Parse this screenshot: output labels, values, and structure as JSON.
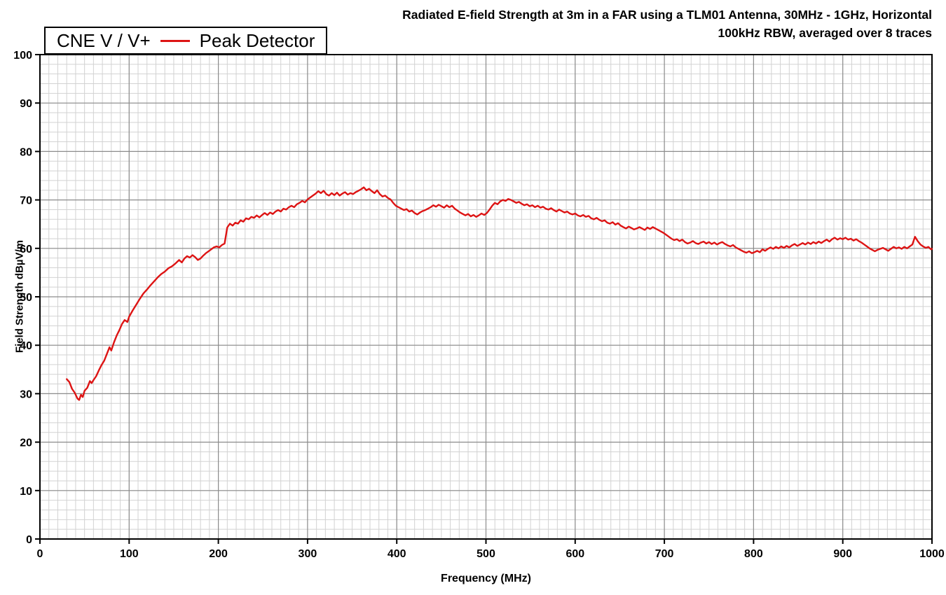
{
  "chart": {
    "title_line1": "Radiated E-field Strength at 3m in a FAR using a TLM01 Antenna, 30MHz - 1GHz, Horizontal",
    "title_line2": "100kHz RBW, averaged over 8 traces",
    "legend_device": "CNE V / V+",
    "legend_series": "Peak Detector",
    "xlabel": "Frequency (MHz)",
    "ylabel": "Field Strength dBµV/m"
  },
  "chart_data": {
    "type": "line",
    "title": "Radiated E-field Strength at 3m in a FAR using a TLM01 Antenna, 30MHz - 1GHz, Horizontal — 100kHz RBW, averaged over 8 traces",
    "xlabel": "Frequency (MHz)",
    "ylabel": "Field Strength dBµV/m",
    "xlim": [
      0,
      1000
    ],
    "ylim": [
      0,
      100
    ],
    "x_ticks": [
      0,
      100,
      200,
      300,
      400,
      500,
      600,
      700,
      800,
      900,
      1000
    ],
    "y_ticks": [
      0,
      10,
      20,
      30,
      40,
      50,
      60,
      70,
      80,
      90,
      100
    ],
    "x_minor_step": 10,
    "y_minor_step": 2,
    "grid": "on",
    "legend_position": "top-left",
    "series_name": "Peak Detector",
    "series_color": "#dd1414",
    "minor_grid_color": "#d2d2d2",
    "major_grid_color": "#8c8c8c",
    "points": [
      [
        30,
        33
      ],
      [
        33,
        32.4
      ],
      [
        36,
        31
      ],
      [
        39,
        30.2
      ],
      [
        42,
        29
      ],
      [
        44,
        28.7
      ],
      [
        46,
        29.8
      ],
      [
        48,
        29.3
      ],
      [
        50,
        30.6
      ],
      [
        53,
        31.2
      ],
      [
        56,
        32.6
      ],
      [
        58,
        32.2
      ],
      [
        60,
        32.8
      ],
      [
        63,
        33.6
      ],
      [
        66,
        34.8
      ],
      [
        69,
        35.9
      ],
      [
        72,
        36.8
      ],
      [
        75,
        38.2
      ],
      [
        78,
        39.6
      ],
      [
        80,
        38.9
      ],
      [
        83,
        40.6
      ],
      [
        86,
        42
      ],
      [
        89,
        43.1
      ],
      [
        92,
        44.4
      ],
      [
        95,
        45.2
      ],
      [
        98,
        44.8
      ],
      [
        100,
        45.9
      ],
      [
        104,
        47.2
      ],
      [
        108,
        48.4
      ],
      [
        112,
        49.6
      ],
      [
        116,
        50.7
      ],
      [
        120,
        51.5
      ],
      [
        124,
        52.4
      ],
      [
        128,
        53.2
      ],
      [
        132,
        54
      ],
      [
        136,
        54.7
      ],
      [
        140,
        55.2
      ],
      [
        144,
        55.9
      ],
      [
        148,
        56.3
      ],
      [
        152,
        56.9
      ],
      [
        156,
        57.6
      ],
      [
        159,
        57.1
      ],
      [
        162,
        57.9
      ],
      [
        165,
        58.4
      ],
      [
        168,
        58.1
      ],
      [
        171,
        58.6
      ],
      [
        174,
        58.2
      ],
      [
        177,
        57.6
      ],
      [
        180,
        57.9
      ],
      [
        183,
        58.5
      ],
      [
        186,
        59
      ],
      [
        189,
        59.4
      ],
      [
        192,
        59.8
      ],
      [
        195,
        60.2
      ],
      [
        198,
        60.4
      ],
      [
        201,
        60.2
      ],
      [
        204,
        60.7
      ],
      [
        207,
        61
      ],
      [
        210,
        64.3
      ],
      [
        213,
        65.1
      ],
      [
        216,
        64.7
      ],
      [
        219,
        65.3
      ],
      [
        222,
        65.1
      ],
      [
        225,
        65.8
      ],
      [
        228,
        65.5
      ],
      [
        231,
        66.2
      ],
      [
        234,
        66
      ],
      [
        237,
        66.5
      ],
      [
        240,
        66.3
      ],
      [
        243,
        66.8
      ],
      [
        246,
        66.4
      ],
      [
        249,
        66.9
      ],
      [
        252,
        67.3
      ],
      [
        255,
        66.9
      ],
      [
        258,
        67.4
      ],
      [
        261,
        67.1
      ],
      [
        264,
        67.6
      ],
      [
        267,
        67.9
      ],
      [
        270,
        67.6
      ],
      [
        273,
        68.2
      ],
      [
        276,
        68
      ],
      [
        279,
        68.5
      ],
      [
        282,
        68.8
      ],
      [
        285,
        68.5
      ],
      [
        288,
        69.1
      ],
      [
        291,
        69.4
      ],
      [
        294,
        69.8
      ],
      [
        297,
        69.5
      ],
      [
        300,
        70.1
      ],
      [
        303,
        70.5
      ],
      [
        306,
        70.9
      ],
      [
        309,
        71.3
      ],
      [
        312,
        71.8
      ],
      [
        315,
        71.4
      ],
      [
        318,
        71.9
      ],
      [
        321,
        71.2
      ],
      [
        324,
        70.9
      ],
      [
        327,
        71.4
      ],
      [
        330,
        71
      ],
      [
        333,
        71.5
      ],
      [
        336,
        70.9
      ],
      [
        339,
        71.3
      ],
      [
        342,
        71.6
      ],
      [
        345,
        71.1
      ],
      [
        348,
        71.4
      ],
      [
        351,
        71.2
      ],
      [
        354,
        71.6
      ],
      [
        357,
        71.9
      ],
      [
        360,
        72.2
      ],
      [
        363,
        72.6
      ],
      [
        366,
        72
      ],
      [
        369,
        72.3
      ],
      [
        372,
        71.8
      ],
      [
        375,
        71.4
      ],
      [
        378,
        72
      ],
      [
        381,
        71.2
      ],
      [
        384,
        70.7
      ],
      [
        387,
        70.9
      ],
      [
        390,
        70.4
      ],
      [
        393,
        70.1
      ],
      [
        396,
        69.4
      ],
      [
        399,
        68.8
      ],
      [
        402,
        68.5
      ],
      [
        405,
        68.2
      ],
      [
        408,
        67.9
      ],
      [
        411,
        68.1
      ],
      [
        414,
        67.6
      ],
      [
        417,
        67.8
      ],
      [
        420,
        67.3
      ],
      [
        423,
        67
      ],
      [
        426,
        67.4
      ],
      [
        429,
        67.7
      ],
      [
        432,
        67.9
      ],
      [
        435,
        68.2
      ],
      [
        438,
        68.5
      ],
      [
        441,
        68.9
      ],
      [
        444,
        68.6
      ],
      [
        447,
        69
      ],
      [
        450,
        68.7
      ],
      [
        453,
        68.4
      ],
      [
        456,
        68.9
      ],
      [
        459,
        68.5
      ],
      [
        462,
        68.8
      ],
      [
        465,
        68.2
      ],
      [
        468,
        67.8
      ],
      [
        471,
        67.4
      ],
      [
        474,
        67.1
      ],
      [
        477,
        66.8
      ],
      [
        480,
        67.1
      ],
      [
        483,
        66.6
      ],
      [
        486,
        66.9
      ],
      [
        489,
        66.5
      ],
      [
        492,
        66.8
      ],
      [
        495,
        67.2
      ],
      [
        498,
        66.9
      ],
      [
        501,
        67.3
      ],
      [
        504,
        68
      ],
      [
        507,
        68.8
      ],
      [
        510,
        69.4
      ],
      [
        513,
        69.1
      ],
      [
        516,
        69.7
      ],
      [
        519,
        70
      ],
      [
        522,
        69.8
      ],
      [
        525,
        70.2
      ],
      [
        528,
        70
      ],
      [
        531,
        69.7
      ],
      [
        534,
        69.4
      ],
      [
        537,
        69.6
      ],
      [
        540,
        69.2
      ],
      [
        543,
        68.9
      ],
      [
        546,
        69.1
      ],
      [
        549,
        68.7
      ],
      [
        552,
        68.9
      ],
      [
        555,
        68.5
      ],
      [
        558,
        68.8
      ],
      [
        561,
        68.4
      ],
      [
        564,
        68.6
      ],
      [
        567,
        68.2
      ],
      [
        570,
        68
      ],
      [
        573,
        68.3
      ],
      [
        576,
        67.9
      ],
      [
        579,
        67.6
      ],
      [
        582,
        68
      ],
      [
        585,
        67.7
      ],
      [
        588,
        67.4
      ],
      [
        591,
        67.6
      ],
      [
        594,
        67.2
      ],
      [
        597,
        67
      ],
      [
        600,
        67.2
      ],
      [
        603,
        66.8
      ],
      [
        606,
        66.6
      ],
      [
        609,
        66.9
      ],
      [
        612,
        66.5
      ],
      [
        615,
        66.7
      ],
      [
        618,
        66.2
      ],
      [
        621,
        66
      ],
      [
        624,
        66.3
      ],
      [
        627,
        65.9
      ],
      [
        630,
        65.6
      ],
      [
        633,
        65.8
      ],
      [
        636,
        65.3
      ],
      [
        639,
        65.1
      ],
      [
        642,
        65.4
      ],
      [
        645,
        64.9
      ],
      [
        648,
        65.2
      ],
      [
        651,
        64.7
      ],
      [
        654,
        64.4
      ],
      [
        657,
        64.1
      ],
      [
        660,
        64.5
      ],
      [
        663,
        64.2
      ],
      [
        666,
        63.9
      ],
      [
        669,
        64.1
      ],
      [
        672,
        64.4
      ],
      [
        675,
        64.1
      ],
      [
        678,
        63.8
      ],
      [
        681,
        64.3
      ],
      [
        684,
        64
      ],
      [
        687,
        64.4
      ],
      [
        690,
        64.1
      ],
      [
        693,
        63.8
      ],
      [
        696,
        63.5
      ],
      [
        699,
        63.2
      ],
      [
        702,
        62.8
      ],
      [
        705,
        62.4
      ],
      [
        708,
        62
      ],
      [
        711,
        61.7
      ],
      [
        714,
        61.9
      ],
      [
        717,
        61.5
      ],
      [
        720,
        61.8
      ],
      [
        723,
        61.3
      ],
      [
        726,
        61
      ],
      [
        729,
        61.2
      ],
      [
        732,
        61.5
      ],
      [
        735,
        61.1
      ],
      [
        738,
        60.9
      ],
      [
        741,
        61.2
      ],
      [
        744,
        61.4
      ],
      [
        747,
        61
      ],
      [
        750,
        61.3
      ],
      [
        753,
        60.9
      ],
      [
        756,
        61.2
      ],
      [
        759,
        60.8
      ],
      [
        762,
        61.1
      ],
      [
        765,
        61.3
      ],
      [
        768,
        60.9
      ],
      [
        771,
        60.6
      ],
      [
        774,
        60.4
      ],
      [
        777,
        60.7
      ],
      [
        780,
        60.2
      ],
      [
        783,
        59.9
      ],
      [
        786,
        59.6
      ],
      [
        789,
        59.3
      ],
      [
        792,
        59.1
      ],
      [
        795,
        59.4
      ],
      [
        798,
        59
      ],
      [
        801,
        59.2
      ],
      [
        804,
        59.5
      ],
      [
        807,
        59.2
      ],
      [
        810,
        59.8
      ],
      [
        813,
        59.5
      ],
      [
        816,
        59.9
      ],
      [
        819,
        60.2
      ],
      [
        822,
        59.9
      ],
      [
        825,
        60.3
      ],
      [
        828,
        60
      ],
      [
        831,
        60.4
      ],
      [
        834,
        60.1
      ],
      [
        837,
        60.5
      ],
      [
        840,
        60.2
      ],
      [
        843,
        60.6
      ],
      [
        846,
        60.9
      ],
      [
        849,
        60.5
      ],
      [
        852,
        60.8
      ],
      [
        855,
        61.1
      ],
      [
        858,
        60.8
      ],
      [
        861,
        61.2
      ],
      [
        864,
        60.9
      ],
      [
        867,
        61.3
      ],
      [
        870,
        61
      ],
      [
        873,
        61.4
      ],
      [
        876,
        61.1
      ],
      [
        879,
        61.5
      ],
      [
        882,
        61.8
      ],
      [
        885,
        61.4
      ],
      [
        888,
        61.9
      ],
      [
        891,
        62.2
      ],
      [
        894,
        61.8
      ],
      [
        897,
        62.1
      ],
      [
        900,
        61.9
      ],
      [
        903,
        62.2
      ],
      [
        906,
        61.8
      ],
      [
        909,
        62
      ],
      [
        912,
        61.6
      ],
      [
        915,
        61.9
      ],
      [
        918,
        61.5
      ],
      [
        921,
        61.2
      ],
      [
        924,
        60.8
      ],
      [
        927,
        60.4
      ],
      [
        930,
        60
      ],
      [
        933,
        59.7
      ],
      [
        936,
        59.4
      ],
      [
        939,
        59.7
      ],
      [
        942,
        59.9
      ],
      [
        945,
        60.1
      ],
      [
        948,
        59.8
      ],
      [
        951,
        59.5
      ],
      [
        954,
        59.9
      ],
      [
        957,
        60.3
      ],
      [
        960,
        60
      ],
      [
        963,
        60.2
      ],
      [
        966,
        59.9
      ],
      [
        969,
        60.3
      ],
      [
        972,
        60
      ],
      [
        975,
        60.4
      ],
      [
        978,
        60.8
      ],
      [
        981,
        62.4
      ],
      [
        984,
        61.5
      ],
      [
        987,
        60.8
      ],
      [
        990,
        60.4
      ],
      [
        993,
        60.1
      ],
      [
        996,
        60.3
      ],
      [
        999,
        59.8
      ],
      [
        1000,
        59.9
      ]
    ]
  }
}
